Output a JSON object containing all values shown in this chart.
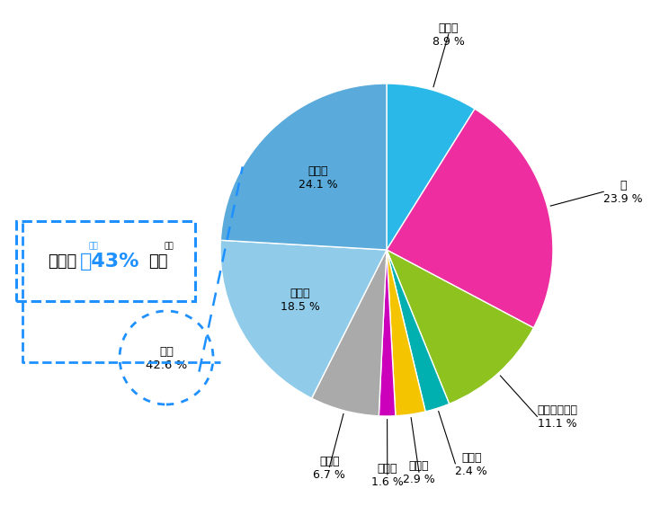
{
  "slices": [
    {
      "label": "生ごみ\n8.9 %",
      "value": 8.9,
      "color": "#29B8E8"
    },
    {
      "label": "紙\n23.9 %",
      "value": 23.9,
      "color": "#EE2EA0"
    },
    {
      "label": "プラスチック\n11.1 %",
      "value": 11.1,
      "color": "#8DC21F"
    },
    {
      "label": "せんい\n2.4 %",
      "value": 2.4,
      "color": "#00B0B0"
    },
    {
      "label": "金ぞく\n2.9 %",
      "value": 2.9,
      "color": "#F5C400"
    },
    {
      "label": "ガラス\n1.6 %",
      "value": 1.6,
      "color": "#CC00BB"
    },
    {
      "label": "その他\n6.7 %",
      "value": 6.7,
      "color": "#AAAAAA"
    },
    {
      "label": "その他\n18.5 %",
      "value": 18.5,
      "color": "#90CCEA"
    },
    {
      "label": "生ごみ\n24.1 %",
      "value": 24.1,
      "color": "#5AABDB"
    },
    {
      "label": "",
      "value": 0.0,
      "color": "#1878C8"
    }
  ],
  "large_blue_value": 23.9,
  "large_blue_color": "#1878C8",
  "large_blue_label_val": 0.0,
  "water_circle_label": "水分\n42.6 %",
  "water_circle_color": "#1E90FF",
  "box_text1": "ごみの",
  "box_text2": "約43%",
  "box_text2_ruby": "やく",
  "box_text3": "は水",
  "box_text3_ruby": "みず",
  "box_color": "#1E90FF",
  "bg_color": "#FFFFFF",
  "inside_labels": [
    "その他\n18.5 %",
    "生ごみ\n24.1 %"
  ],
  "pie_edgecolor": "#FFFFFF",
  "pie_edgewidth": 1.0
}
